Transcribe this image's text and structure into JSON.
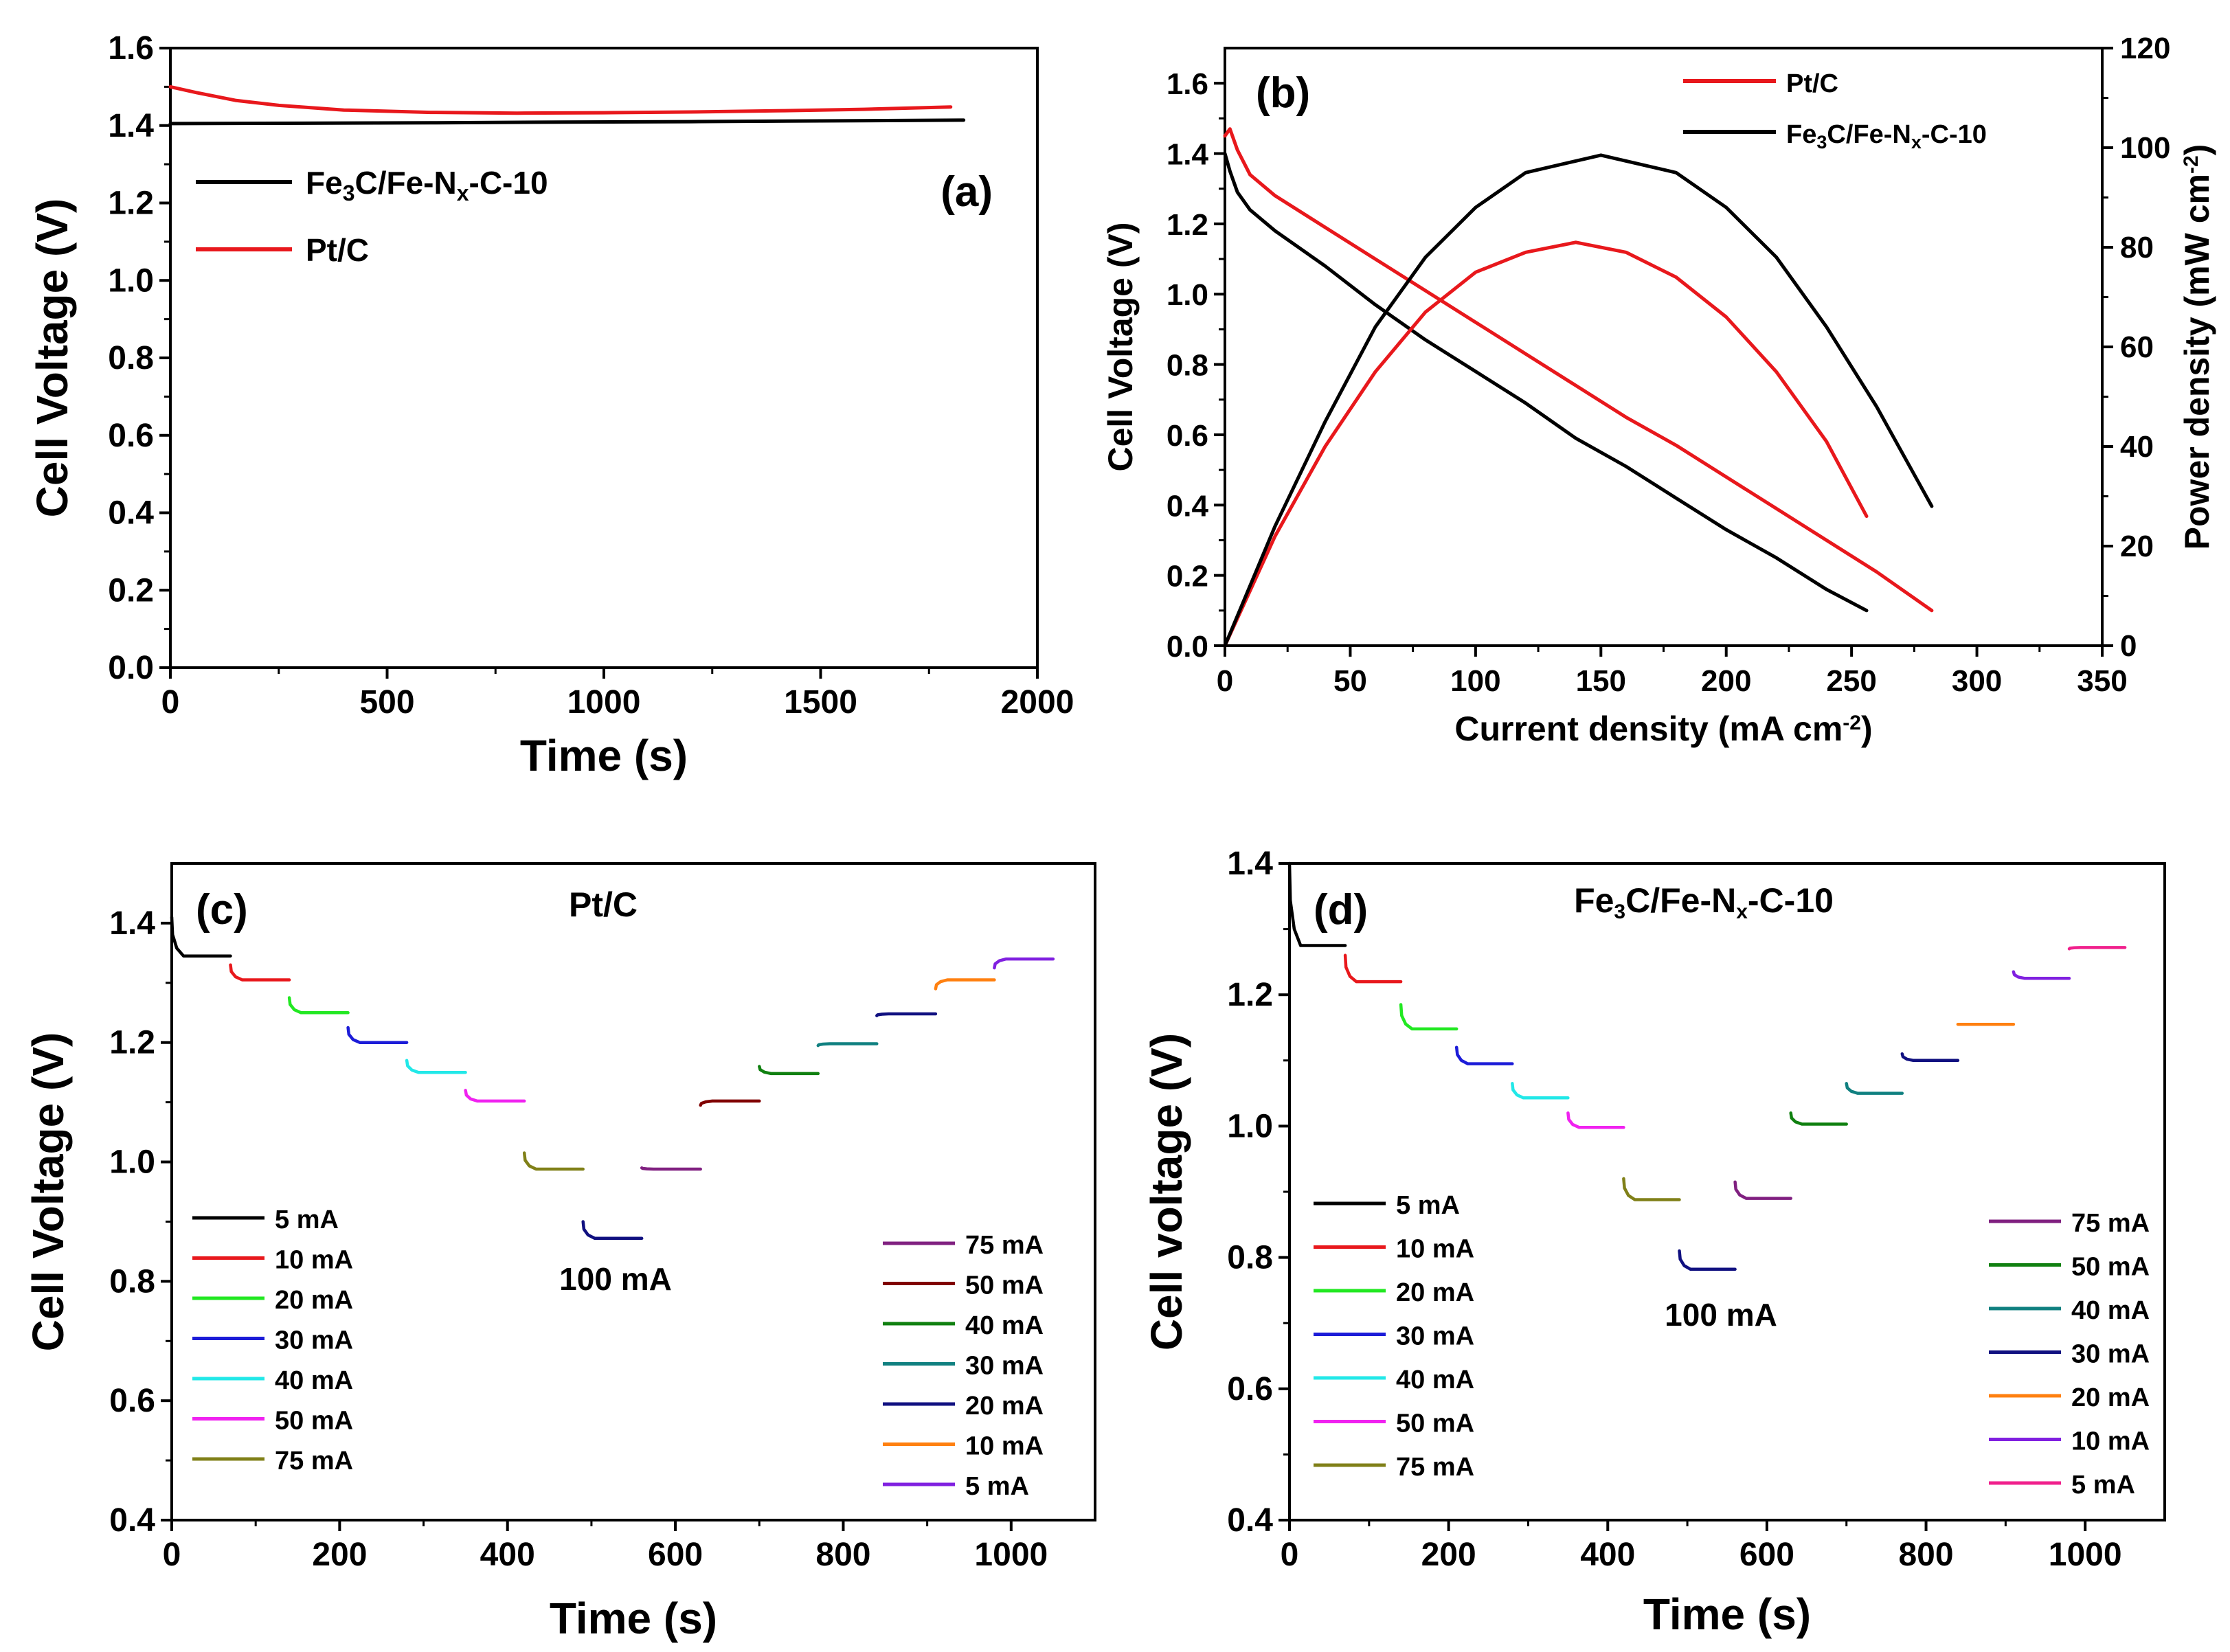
{
  "chart_data": [
    {
      "id": "a",
      "type": "line",
      "panel_label": "(a)",
      "xlabel": "Time (s)",
      "ylabel": "Cell Voltage (V)",
      "xlim": [
        0,
        2000
      ],
      "ylim": [
        0.0,
        1.6
      ],
      "xticks": [
        0,
        500,
        1000,
        1500,
        2000
      ],
      "xtick_labels": [
        "0",
        "500",
        "1000",
        "1500",
        "2000"
      ],
      "yticks": [
        0.0,
        0.2,
        0.4,
        0.6,
        0.8,
        1.0,
        1.2,
        1.4,
        1.6
      ],
      "ytick_labels": [
        "0.0",
        "0.2",
        "0.4",
        "0.6",
        "0.8",
        "1.0",
        "1.2",
        "1.4",
        "1.6"
      ],
      "legend": [
        {
          "parts": [
            [
              "Fe",
              ""
            ],
            [
              "3",
              "sub"
            ],
            [
              "C/Fe-N",
              ""
            ],
            [
              "x",
              "sub"
            ],
            [
              "-C-10",
              ""
            ]
          ],
          "color": "#000000"
        },
        {
          "parts": [
            [
              "Pt/C",
              ""
            ]
          ],
          "color": "#e8181c"
        }
      ],
      "series": [
        {
          "name": "Fe3C/Fe-Nx-C-10",
          "color": "#000000",
          "x": [
            0,
            300,
            600,
            900,
            1200,
            1500,
            1830
          ],
          "y": [
            1.405,
            1.406,
            1.407,
            1.409,
            1.41,
            1.412,
            1.414
          ]
        },
        {
          "name": "Pt/C",
          "color": "#e8181c",
          "x": [
            0,
            60,
            150,
            250,
            400,
            600,
            800,
            1000,
            1200,
            1400,
            1600,
            1800
          ],
          "y": [
            1.5,
            1.485,
            1.465,
            1.452,
            1.44,
            1.434,
            1.432,
            1.433,
            1.435,
            1.438,
            1.442,
            1.448
          ]
        }
      ]
    },
    {
      "id": "b",
      "type": "line",
      "panel_label": "(b)",
      "xlabel_parts": [
        [
          "Current density (mA cm",
          ""
        ],
        [
          "-2",
          "sup"
        ],
        [
          ")",
          ""
        ]
      ],
      "ylabel": "Cell Voltage (V)",
      "y2label_parts": [
        [
          "Power density (mW cm",
          ""
        ],
        [
          "-2",
          "sup"
        ],
        [
          ")",
          ""
        ]
      ],
      "xlim": [
        0,
        350
      ],
      "ylim": [
        0.0,
        1.7
      ],
      "y2lim": [
        0,
        120
      ],
      "xticks": [
        0,
        50,
        100,
        150,
        200,
        250,
        300,
        350
      ],
      "xtick_labels": [
        "0",
        "50",
        "100",
        "150",
        "200",
        "250",
        "300",
        "350"
      ],
      "yticks": [
        0.0,
        0.2,
        0.4,
        0.6,
        0.8,
        1.0,
        1.2,
        1.4,
        1.6
      ],
      "ytick_labels": [
        "0.0",
        "0.2",
        "0.4",
        "0.6",
        "0.8",
        "1.0",
        "1.2",
        "1.4",
        "1.6"
      ],
      "y2ticks": [
        0,
        20,
        40,
        60,
        80,
        100,
        120
      ],
      "y2tick_labels": [
        "0",
        "20",
        "40",
        "60",
        "80",
        "100",
        "120"
      ],
      "legend": [
        {
          "parts": [
            [
              "Pt/C",
              ""
            ]
          ],
          "color": "#e8181c"
        },
        {
          "parts": [
            [
              "Fe",
              ""
            ],
            [
              "3",
              "sub"
            ],
            [
              "C/Fe-N",
              ""
            ],
            [
              "x",
              "sub"
            ],
            [
              "-C-10",
              ""
            ]
          ],
          "color": "#000000"
        }
      ],
      "series": [
        {
          "name": "Pt/C polarization",
          "color": "#e8181c",
          "axis": "left",
          "x": [
            0,
            2,
            5,
            10,
            20,
            40,
            60,
            80,
            100,
            120,
            140,
            160,
            180,
            200,
            220,
            240,
            260,
            282
          ],
          "y": [
            1.45,
            1.47,
            1.41,
            1.34,
            1.28,
            1.19,
            1.1,
            1.01,
            0.92,
            0.83,
            0.74,
            0.65,
            0.57,
            0.48,
            0.39,
            0.3,
            0.21,
            0.1
          ]
        },
        {
          "name": "Fe3C/Fe-Nx-C-10 polarization",
          "color": "#000000",
          "axis": "left",
          "x": [
            0,
            2,
            5,
            10,
            20,
            40,
            60,
            80,
            100,
            120,
            140,
            160,
            180,
            200,
            220,
            240,
            256
          ],
          "y": [
            1.4,
            1.35,
            1.29,
            1.24,
            1.18,
            1.08,
            0.97,
            0.87,
            0.78,
            0.69,
            0.59,
            0.51,
            0.42,
            0.33,
            0.25,
            0.16,
            0.1
          ]
        },
        {
          "name": "Pt/C power density",
          "color": "#e8181c",
          "axis": "right",
          "x": [
            0,
            20,
            40,
            60,
            80,
            100,
            120,
            140,
            160,
            180,
            200,
            220,
            240,
            256
          ],
          "y": [
            0,
            22,
            40,
            55,
            67,
            75,
            79,
            81,
            79,
            74,
            66,
            55,
            41,
            26
          ]
        },
        {
          "name": "Fe3C/Fe-Nx-C-10 power density",
          "color": "#000000",
          "axis": "right",
          "x": [
            0,
            20,
            40,
            60,
            80,
            100,
            120,
            150,
            180,
            200,
            220,
            240,
            260,
            282
          ],
          "y": [
            0,
            24,
            45,
            64,
            78,
            88,
            95,
            98.5,
            95,
            88,
            78,
            64,
            48,
            28
          ]
        }
      ]
    },
    {
      "id": "c",
      "type": "line",
      "panel_label": "(c)",
      "title": "Pt/C",
      "annotation": "100 mA",
      "xlabel": "Time (s)",
      "ylabel": "Cell Voltage (V)",
      "xlim": [
        0,
        1100
      ],
      "ylim": [
        0.4,
        1.5
      ],
      "xticks": [
        0,
        200,
        400,
        600,
        800,
        1000
      ],
      "xtick_labels": [
        "0",
        "200",
        "400",
        "600",
        "800",
        "1000"
      ],
      "yticks": [
        0.4,
        0.6,
        0.8,
        1.0,
        1.2,
        1.4
      ],
      "ytick_labels": [
        "0.4",
        "0.6",
        "0.8",
        "1.0",
        "1.2",
        "1.4"
      ],
      "legend_left": [
        {
          "label": "5 mA",
          "color": "#000000"
        },
        {
          "label": "10 mA",
          "color": "#e8181c"
        },
        {
          "label": "20 mA",
          "color": "#22e822"
        },
        {
          "label": "30 mA",
          "color": "#1c1cd8"
        },
        {
          "label": "40 mA",
          "color": "#22e8e8"
        },
        {
          "label": "50 mA",
          "color": "#f022f0"
        },
        {
          "label": "75 mA",
          "color": "#808018"
        }
      ],
      "legend_right": [
        {
          "label": "75 mA",
          "color": "#802080"
        },
        {
          "label": "50 mA",
          "color": "#800000"
        },
        {
          "label": "40 mA",
          "color": "#108010"
        },
        {
          "label": "30 mA",
          "color": "#108080"
        },
        {
          "label": "20 mA",
          "color": "#101080"
        },
        {
          "label": "10 mA",
          "color": "#ff8010"
        },
        {
          "label": "5 mA",
          "color": "#8020e0"
        }
      ],
      "steps": [
        {
          "t0": 0,
          "t1": 70,
          "v": 1.345,
          "start": 1.41,
          "color": "#000000"
        },
        {
          "t0": 70,
          "t1": 140,
          "v": 1.305,
          "start": 1.33,
          "color": "#e8181c"
        },
        {
          "t0": 140,
          "t1": 210,
          "v": 1.25,
          "start": 1.275,
          "color": "#22e822"
        },
        {
          "t0": 210,
          "t1": 280,
          "v": 1.2,
          "start": 1.225,
          "color": "#1c1cd8"
        },
        {
          "t0": 280,
          "t1": 350,
          "v": 1.15,
          "start": 1.17,
          "color": "#22e8e8"
        },
        {
          "t0": 350,
          "t1": 420,
          "v": 1.102,
          "start": 1.12,
          "color": "#f022f0"
        },
        {
          "t0": 420,
          "t1": 490,
          "v": 0.988,
          "start": 1.015,
          "color": "#808018"
        },
        {
          "t0": 490,
          "t1": 560,
          "v": 0.872,
          "start": 0.9,
          "color": "#101080"
        },
        {
          "t0": 560,
          "t1": 630,
          "v": 0.988,
          "start": 0.99,
          "color": "#802080"
        },
        {
          "t0": 630,
          "t1": 700,
          "v": 1.102,
          "start": 1.095,
          "color": "#800000"
        },
        {
          "t0": 700,
          "t1": 770,
          "v": 1.148,
          "start": 1.16,
          "color": "#108010"
        },
        {
          "t0": 770,
          "t1": 840,
          "v": 1.198,
          "start": 1.195,
          "color": "#108080"
        },
        {
          "t0": 840,
          "t1": 910,
          "v": 1.248,
          "start": 1.245,
          "color": "#101080"
        },
        {
          "t0": 910,
          "t1": 980,
          "v": 1.305,
          "start": 1.29,
          "color": "#ff8010"
        },
        {
          "t0": 980,
          "t1": 1050,
          "v": 1.34,
          "start": 1.325,
          "color": "#8020e0"
        }
      ]
    },
    {
      "id": "d",
      "type": "line",
      "panel_label": "(d)",
      "title_parts": [
        [
          "Fe",
          ""
        ],
        [
          "3",
          "sub"
        ],
        [
          "C/Fe-N",
          ""
        ],
        [
          "x",
          "sub"
        ],
        [
          "-C-10",
          ""
        ]
      ],
      "annotation": "100 mA",
      "xlabel": "Time (s)",
      "ylabel": "Cell voltage (V)",
      "xlim": [
        0,
        1100
      ],
      "ylim": [
        0.4,
        1.4
      ],
      "xticks": [
        0,
        200,
        400,
        600,
        800,
        1000
      ],
      "xtick_labels": [
        "0",
        "200",
        "400",
        "600",
        "800",
        "1000"
      ],
      "yticks": [
        0.4,
        0.6,
        0.8,
        1.0,
        1.2,
        1.4
      ],
      "ytick_labels": [
        "0.4",
        "0.6",
        "0.8",
        "1.0",
        "1.2",
        "1.4"
      ],
      "legend_left": [
        {
          "label": "5 mA",
          "color": "#000000"
        },
        {
          "label": "10 mA",
          "color": "#e8181c"
        },
        {
          "label": "20 mA",
          "color": "#22e822"
        },
        {
          "label": "30 mA",
          "color": "#1c1cd8"
        },
        {
          "label": "40 mA",
          "color": "#22e8e8"
        },
        {
          "label": "50 mA",
          "color": "#f022f0"
        },
        {
          "label": "75 mA",
          "color": "#808018"
        }
      ],
      "legend_right": [
        {
          "label": "75 mA",
          "color": "#802080"
        },
        {
          "label": "50 mA",
          "color": "#108010"
        },
        {
          "label": "40 mA",
          "color": "#108080"
        },
        {
          "label": "30 mA",
          "color": "#101080"
        },
        {
          "label": "20 mA",
          "color": "#ff8010"
        },
        {
          "label": "10 mA",
          "color": "#8020e0"
        },
        {
          "label": "5 mA",
          "color": "#f0208c"
        }
      ],
      "steps": [
        {
          "t0": 0,
          "t1": 70,
          "v": 1.275,
          "start": 1.4,
          "color": "#000000"
        },
        {
          "t0": 70,
          "t1": 140,
          "v": 1.22,
          "start": 1.26,
          "color": "#e8181c"
        },
        {
          "t0": 140,
          "t1": 210,
          "v": 1.148,
          "start": 1.185,
          "color": "#22e822"
        },
        {
          "t0": 210,
          "t1": 280,
          "v": 1.095,
          "start": 1.12,
          "color": "#1c1cd8"
        },
        {
          "t0": 280,
          "t1": 350,
          "v": 1.043,
          "start": 1.065,
          "color": "#22e8e8"
        },
        {
          "t0": 350,
          "t1": 420,
          "v": 0.998,
          "start": 1.02,
          "color": "#f022f0"
        },
        {
          "t0": 420,
          "t1": 490,
          "v": 0.888,
          "start": 0.92,
          "color": "#808018"
        },
        {
          "t0": 490,
          "t1": 560,
          "v": 0.782,
          "start": 0.81,
          "color": "#101080"
        },
        {
          "t0": 560,
          "t1": 630,
          "v": 0.89,
          "start": 0.915,
          "color": "#802080"
        },
        {
          "t0": 630,
          "t1": 700,
          "v": 1.003,
          "start": 1.02,
          "color": "#108010"
        },
        {
          "t0": 700,
          "t1": 770,
          "v": 1.05,
          "start": 1.065,
          "color": "#108080"
        },
        {
          "t0": 770,
          "t1": 840,
          "v": 1.1,
          "start": 1.11,
          "color": "#101080"
        },
        {
          "t0": 840,
          "t1": 910,
          "v": 1.155,
          "start": 1.155,
          "color": "#ff8010"
        },
        {
          "t0": 910,
          "t1": 980,
          "v": 1.225,
          "start": 1.235,
          "color": "#8020e0"
        },
        {
          "t0": 980,
          "t1": 1050,
          "v": 1.272,
          "start": 1.27,
          "color": "#f0208c"
        }
      ]
    }
  ]
}
